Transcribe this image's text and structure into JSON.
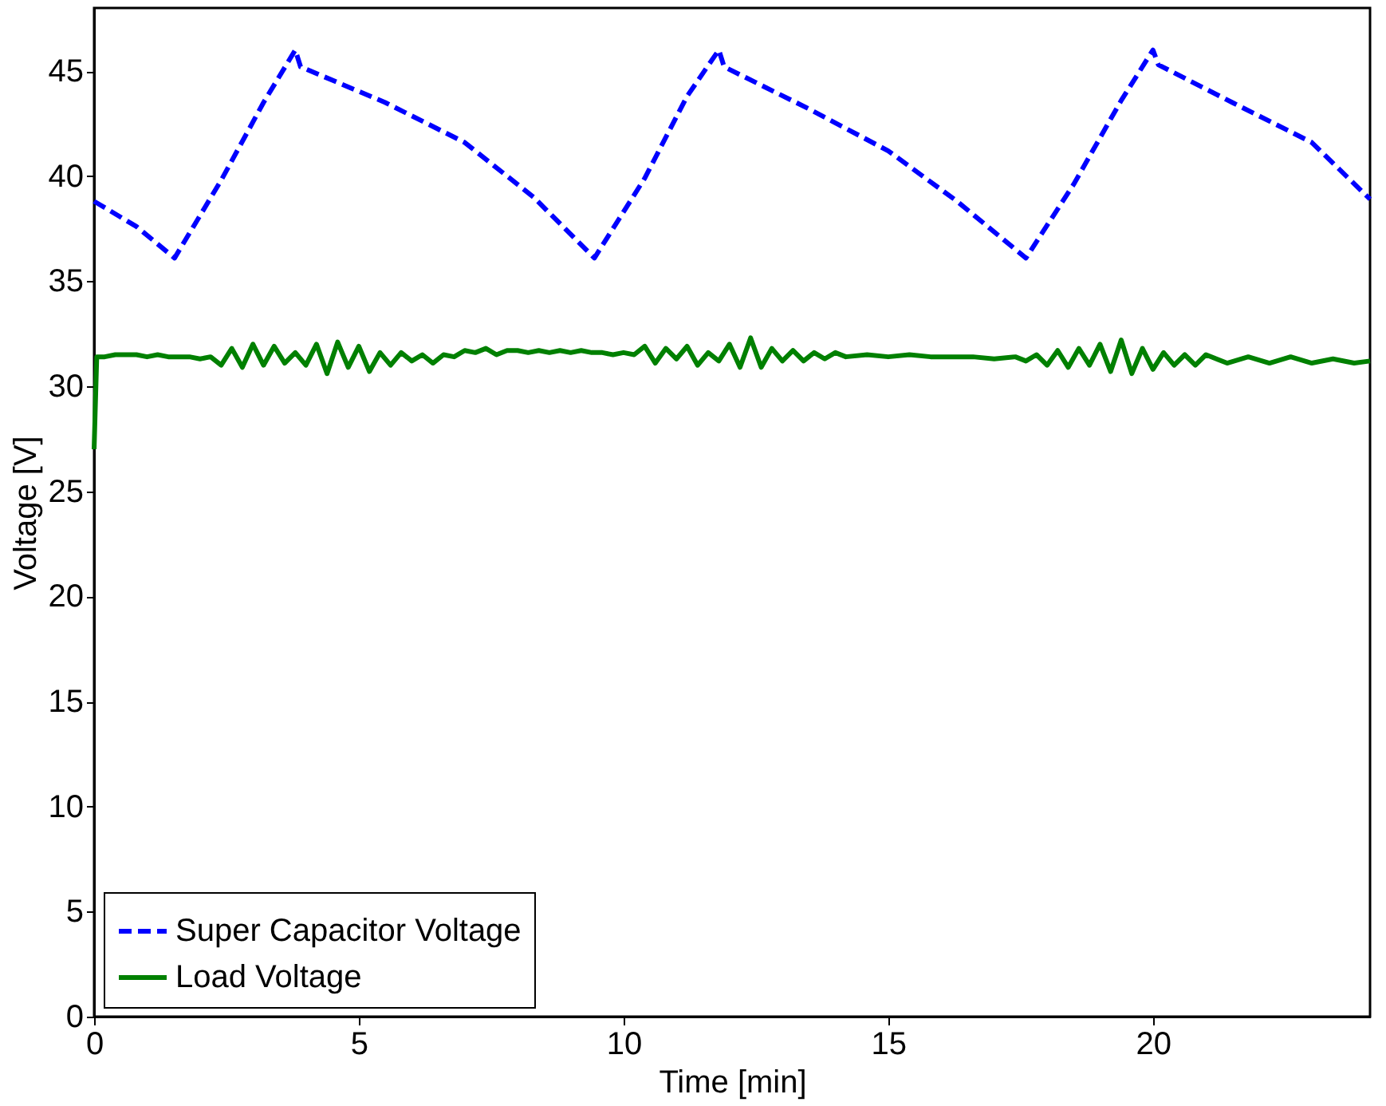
{
  "chart_data": {
    "type": "line",
    "xlabel": "Time [min]",
    "ylabel": "Voltage [V]",
    "xlim": [
      0,
      24.1
    ],
    "ylim": [
      0,
      48
    ],
    "xticks": [
      0,
      5,
      10,
      15,
      20
    ],
    "yticks": [
      0,
      5,
      10,
      15,
      20,
      25,
      30,
      35,
      40,
      45
    ],
    "grid": false,
    "legend": "bottom left",
    "marker": "none",
    "series": [
      {
        "name": "Super Capacitor Voltage",
        "color": "#0000ff",
        "line_style": "dashed",
        "x": [
          0,
          0.8,
          1.52,
          2.4,
          3.2,
          3.8,
          3.9,
          5.5,
          7.0,
          8.3,
          9.45,
          10.4,
          11.2,
          11.8,
          11.9,
          13.5,
          15.0,
          16.3,
          17.6,
          18.5,
          19.4,
          20.0,
          20.1,
          21.5,
          23.0,
          24.1
        ],
        "values": [
          38.8,
          37.6,
          36.1,
          39.8,
          43.5,
          46.0,
          45.2,
          43.5,
          41.6,
          39.0,
          36.1,
          39.9,
          43.8,
          46.0,
          45.2,
          43.2,
          41.2,
          38.8,
          36.1,
          39.6,
          43.6,
          46.0,
          45.3,
          43.5,
          41.6,
          38.9
        ]
      },
      {
        "name": "Load Voltage",
        "color": "#008000",
        "line_style": "solid",
        "x": [
          0,
          0.05,
          0.2,
          0.4,
          0.6,
          0.8,
          1.0,
          1.2,
          1.4,
          1.6,
          1.8,
          2.0,
          2.2,
          2.4,
          2.6,
          2.8,
          3.0,
          3.2,
          3.4,
          3.6,
          3.8,
          4.0,
          4.2,
          4.4,
          4.6,
          4.8,
          5.0,
          5.2,
          5.4,
          5.6,
          5.8,
          6.0,
          6.2,
          6.4,
          6.6,
          6.8,
          7.0,
          7.2,
          7.4,
          7.6,
          7.8,
          8.0,
          8.2,
          8.4,
          8.6,
          8.8,
          9.0,
          9.2,
          9.4,
          9.6,
          9.8,
          10.0,
          10.2,
          10.4,
          10.6,
          10.8,
          11.0,
          11.2,
          11.4,
          11.6,
          11.8,
          12.0,
          12.2,
          12.4,
          12.6,
          12.8,
          13.0,
          13.2,
          13.4,
          13.6,
          13.8,
          14.0,
          14.2,
          14.6,
          15.0,
          15.4,
          15.8,
          16.2,
          16.6,
          17.0,
          17.4,
          17.6,
          17.8,
          18.0,
          18.2,
          18.4,
          18.6,
          18.8,
          19.0,
          19.2,
          19.4,
          19.6,
          19.8,
          20.0,
          20.2,
          20.4,
          20.6,
          20.8,
          21.0,
          21.4,
          21.8,
          22.2,
          22.6,
          23.0,
          23.4,
          23.8,
          24.1
        ],
        "values": [
          27.0,
          31.4,
          31.4,
          31.5,
          31.5,
          31.5,
          31.4,
          31.5,
          31.4,
          31.4,
          31.4,
          31.3,
          31.4,
          31.0,
          31.8,
          30.9,
          32.0,
          31.0,
          31.9,
          31.1,
          31.6,
          31.0,
          32.0,
          30.6,
          32.1,
          30.9,
          31.9,
          30.7,
          31.6,
          31.0,
          31.6,
          31.2,
          31.5,
          31.1,
          31.5,
          31.4,
          31.7,
          31.6,
          31.8,
          31.5,
          31.7,
          31.7,
          31.6,
          31.7,
          31.6,
          31.7,
          31.6,
          31.7,
          31.6,
          31.6,
          31.5,
          31.6,
          31.5,
          31.9,
          31.1,
          31.8,
          31.3,
          31.9,
          31.0,
          31.6,
          31.2,
          32.0,
          30.9,
          32.3,
          30.9,
          31.8,
          31.2,
          31.7,
          31.2,
          31.6,
          31.3,
          31.6,
          31.4,
          31.5,
          31.4,
          31.5,
          31.4,
          31.4,
          31.4,
          31.3,
          31.4,
          31.2,
          31.5,
          31.0,
          31.7,
          30.9,
          31.8,
          31.0,
          32.0,
          30.7,
          32.2,
          30.6,
          31.8,
          30.8,
          31.6,
          31.0,
          31.5,
          31.0,
          31.5,
          31.1,
          31.4,
          31.1,
          31.4,
          31.1,
          31.3,
          31.1,
          31.2
        ]
      }
    ]
  }
}
